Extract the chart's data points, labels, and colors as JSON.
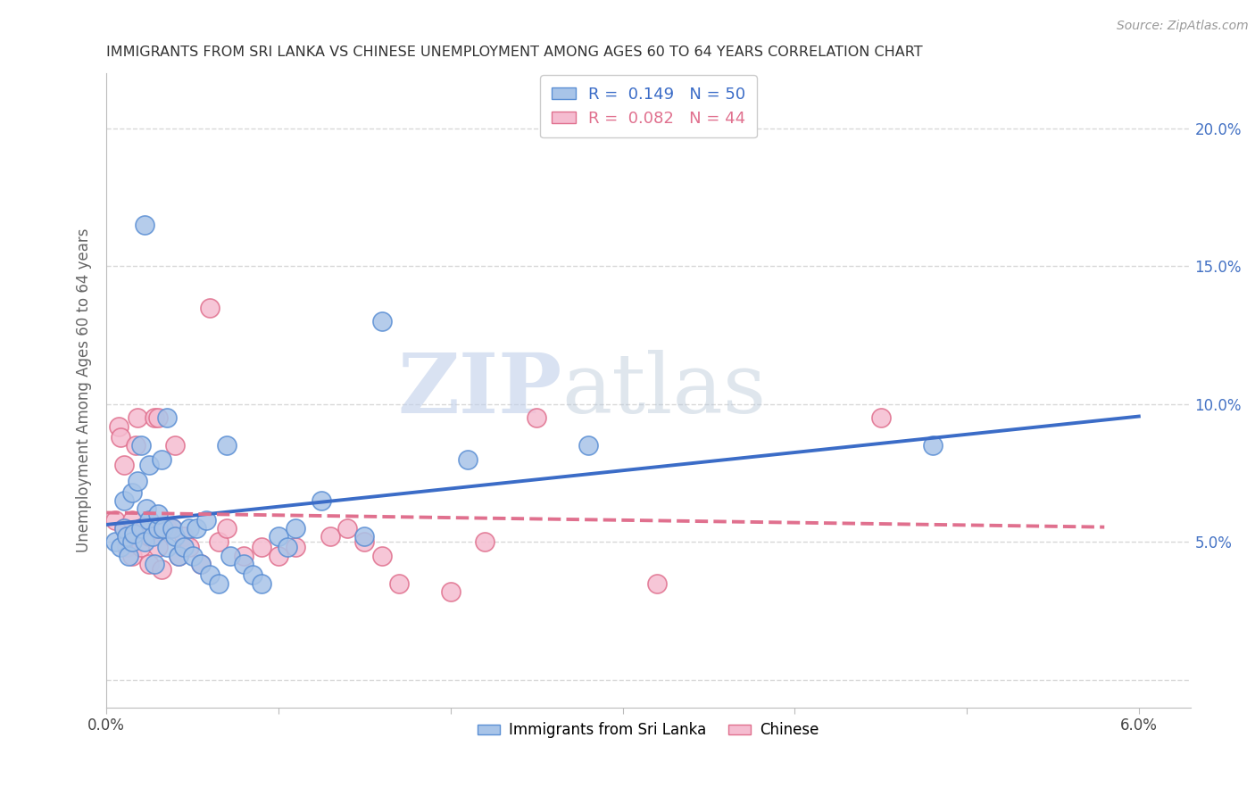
{
  "title": "IMMIGRANTS FROM SRI LANKA VS CHINESE UNEMPLOYMENT AMONG AGES 60 TO 64 YEARS CORRELATION CHART",
  "source": "Source: ZipAtlas.com",
  "ylabel": "Unemployment Among Ages 60 to 64 years",
  "xlim": [
    0.0,
    6.3
  ],
  "ylim": [
    -1.0,
    22.0
  ],
  "yticks": [
    0.0,
    5.0,
    10.0,
    15.0,
    20.0
  ],
  "ytick_labels": [
    "",
    "5.0%",
    "10.0%",
    "15.0%",
    "20.0%"
  ],
  "xticks": [
    0.0,
    1.0,
    2.0,
    3.0,
    4.0,
    5.0,
    6.0
  ],
  "xtick_labels": [
    "0.0%",
    "",
    "",
    "",
    "",
    "",
    "6.0%"
  ],
  "series1_label": "Immigrants from Sri Lanka",
  "series1_color": "#a8c4e8",
  "series1_edge": "#5b8fd4",
  "series1_R": 0.149,
  "series1_N": 50,
  "series1_line_color": "#3b6cc7",
  "series2_label": "Chinese",
  "series2_color": "#f5bcd0",
  "series2_edge": "#e0708e",
  "series2_R": 0.082,
  "series2_N": 44,
  "series2_line_color": "#e0708e",
  "watermark_zip": "ZIP",
  "watermark_atlas": "atlas",
  "background_color": "#ffffff",
  "grid_color": "#d8d8d8",
  "title_color": "#333333",
  "axis_label_color": "#666666",
  "right_axis_color": "#4472c4",
  "series1_x": [
    0.05,
    0.08,
    0.1,
    0.1,
    0.12,
    0.13,
    0.15,
    0.15,
    0.16,
    0.18,
    0.2,
    0.2,
    0.22,
    0.23,
    0.25,
    0.25,
    0.27,
    0.28,
    0.3,
    0.3,
    0.32,
    0.33,
    0.35,
    0.35,
    0.38,
    0.4,
    0.42,
    0.45,
    0.48,
    0.5,
    0.52,
    0.55,
    0.58,
    0.6,
    0.65,
    0.7,
    0.72,
    0.8,
    0.85,
    0.9,
    1.0,
    1.05,
    1.1,
    1.25,
    1.5,
    1.6,
    2.1,
    2.8,
    4.8,
    0.22
  ],
  "series1_y": [
    5.0,
    4.8,
    5.5,
    6.5,
    5.2,
    4.5,
    5.0,
    6.8,
    5.3,
    7.2,
    5.5,
    8.5,
    5.0,
    6.2,
    5.8,
    7.8,
    5.2,
    4.2,
    5.5,
    6.0,
    8.0,
    5.5,
    9.5,
    4.8,
    5.5,
    5.2,
    4.5,
    4.8,
    5.5,
    4.5,
    5.5,
    4.2,
    5.8,
    3.8,
    3.5,
    8.5,
    4.5,
    4.2,
    3.8,
    3.5,
    5.2,
    4.8,
    5.5,
    6.5,
    5.2,
    13.0,
    8.0,
    8.5,
    8.5,
    16.5
  ],
  "series2_x": [
    0.05,
    0.07,
    0.08,
    0.1,
    0.1,
    0.12,
    0.13,
    0.15,
    0.15,
    0.17,
    0.18,
    0.2,
    0.2,
    0.22,
    0.25,
    0.25,
    0.28,
    0.3,
    0.3,
    0.32,
    0.35,
    0.38,
    0.4,
    0.42,
    0.45,
    0.48,
    0.55,
    0.6,
    0.65,
    0.7,
    0.8,
    0.9,
    1.0,
    1.1,
    1.3,
    1.4,
    1.5,
    1.6,
    1.7,
    2.0,
    2.2,
    2.5,
    3.2,
    4.5
  ],
  "series2_y": [
    5.8,
    9.2,
    8.8,
    5.5,
    7.8,
    4.8,
    5.2,
    5.8,
    4.5,
    8.5,
    9.5,
    5.5,
    4.8,
    5.5,
    5.2,
    4.2,
    9.5,
    4.8,
    9.5,
    4.0,
    5.5,
    5.5,
    8.5,
    4.5,
    5.2,
    4.8,
    4.2,
    13.5,
    5.0,
    5.5,
    4.5,
    4.8,
    4.5,
    4.8,
    5.2,
    5.5,
    5.0,
    4.5,
    3.5,
    3.2,
    5.0,
    9.5,
    3.5,
    9.5
  ]
}
